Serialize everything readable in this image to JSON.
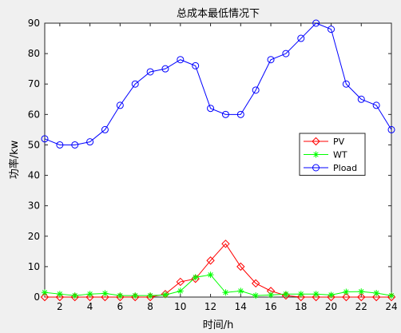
{
  "chart_data": {
    "type": "line",
    "title": "总成本最低情况下",
    "xlabel": "时间/h",
    "ylabel": "功率/kw",
    "xlim": [
      1,
      24
    ],
    "ylim": [
      0,
      90
    ],
    "xticks": [
      2,
      4,
      6,
      8,
      10,
      12,
      14,
      16,
      18,
      20,
      22,
      24
    ],
    "yticks": [
      0,
      10,
      20,
      30,
      40,
      50,
      60,
      70,
      80,
      90
    ],
    "grid": false,
    "legend_position": "right",
    "x": [
      1,
      2,
      3,
      4,
      5,
      6,
      7,
      8,
      9,
      10,
      11,
      12,
      13,
      14,
      15,
      16,
      17,
      18,
      19,
      20,
      21,
      22,
      23,
      24
    ],
    "series": [
      {
        "name": "PV",
        "color": "#ff0000",
        "marker": "diamond",
        "values": [
          0,
          0,
          0,
          0,
          0,
          0,
          0,
          0,
          1,
          5,
          6,
          12,
          17.5,
          10,
          4.5,
          2,
          0.5,
          0,
          0,
          0,
          0,
          0,
          0,
          0
        ]
      },
      {
        "name": "WT",
        "color": "#00ff00",
        "marker": "star",
        "values": [
          1.5,
          1,
          0.5,
          1,
          1.2,
          0.5,
          0.5,
          0.5,
          0.7,
          2,
          6.5,
          7.3,
          1.5,
          2,
          0.5,
          0.7,
          1,
          1,
          1,
          0.7,
          1.7,
          1.8,
          1.3,
          0.5
        ]
      },
      {
        "name": "Pload",
        "color": "#0000ff",
        "marker": "circle",
        "values": [
          52,
          50,
          50,
          51,
          55,
          63,
          70,
          74,
          75,
          78,
          76,
          62,
          60,
          60,
          68,
          78,
          80,
          85,
          90,
          88,
          70,
          65,
          63,
          55
        ]
      }
    ]
  }
}
